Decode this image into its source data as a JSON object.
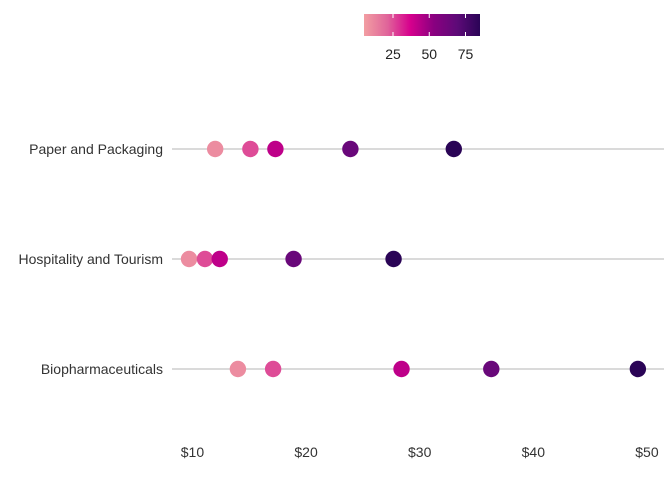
{
  "chart_data": {
    "type": "dot-strip",
    "title": "",
    "xlabel": "",
    "ylabel": "",
    "x_ticks": [
      10,
      20,
      30,
      40,
      50
    ],
    "x_tick_labels": [
      "$10",
      "$20",
      "$30",
      "$40",
      "$50"
    ],
    "xlim": [
      8.2,
      51.5
    ],
    "grid": false,
    "legend": {
      "placement": "top-center",
      "type": "colorbar",
      "range": [
        5,
        85
      ],
      "ticks": [
        25,
        50,
        75
      ],
      "tick_labels": [
        "25",
        "50",
        "75"
      ]
    },
    "color_scale": [
      "#f29ea2",
      "#e0659a",
      "#d6008d",
      "#8a0080",
      "#5e0a78",
      "#2a0456"
    ],
    "categories": [
      {
        "label": "Paper and Packaging",
        "points": [
          {
            "x": 12.0,
            "c": 10
          },
          {
            "x": 15.1,
            "c": 25
          },
          {
            "x": 17.3,
            "c": 42
          },
          {
            "x": 23.9,
            "c": 65
          },
          {
            "x": 33.0,
            "c": 85
          }
        ]
      },
      {
        "label": "Hospitality and Tourism",
        "points": [
          {
            "x": 9.7,
            "c": 10
          },
          {
            "x": 11.1,
            "c": 25
          },
          {
            "x": 12.4,
            "c": 42
          },
          {
            "x": 18.9,
            "c": 65
          },
          {
            "x": 27.7,
            "c": 85
          }
        ]
      },
      {
        "label": "Biopharmaceuticals",
        "points": [
          {
            "x": 14.0,
            "c": 10
          },
          {
            "x": 17.1,
            "c": 25
          },
          {
            "x": 28.4,
            "c": 42
          },
          {
            "x": 36.3,
            "c": 65
          },
          {
            "x": 49.2,
            "c": 85
          }
        ]
      }
    ]
  }
}
